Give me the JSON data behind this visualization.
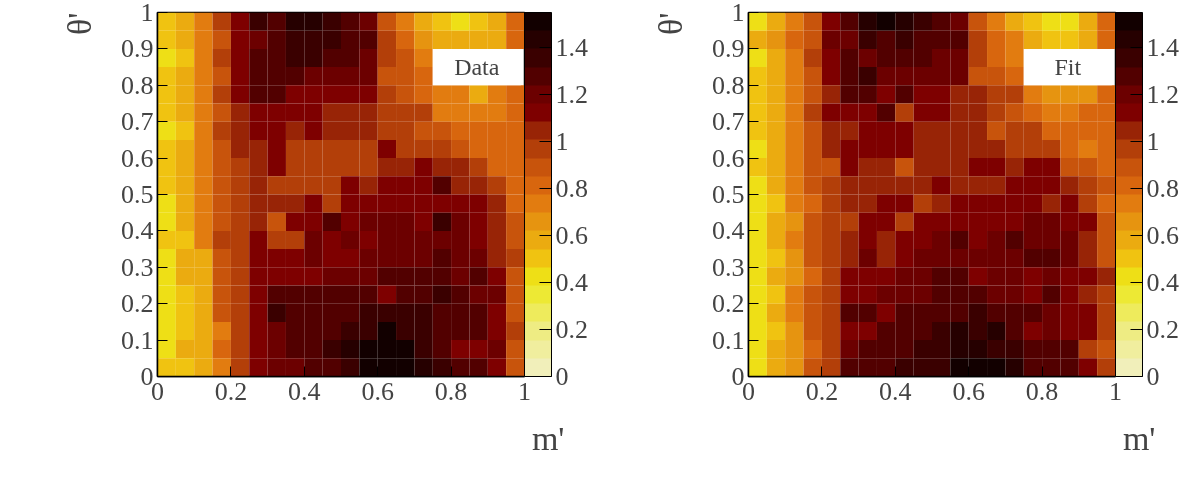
{
  "chart_data": [
    {
      "type": "heatmap",
      "annotations": [
        "Data"
      ],
      "xlabel": "m'",
      "ylabel": "θ'",
      "x": [
        0.025,
        0.075,
        0.125,
        0.175,
        0.225,
        0.275,
        0.325,
        0.375,
        0.425,
        0.475,
        0.525,
        0.575,
        0.625,
        0.675,
        0.725,
        0.775,
        0.825,
        0.875,
        0.925,
        0.975
      ],
      "y": [
        0.975,
        0.925,
        0.875,
        0.825,
        0.775,
        0.725,
        0.675,
        0.625,
        0.575,
        0.525,
        0.475,
        0.425,
        0.375,
        0.325,
        0.275,
        0.225,
        0.175,
        0.125,
        0.075,
        0.025
      ],
      "xlim": [
        0,
        1
      ],
      "ylim": [
        0,
        1
      ],
      "xticks": [
        0,
        0.2,
        0.4,
        0.6,
        0.8,
        1
      ],
      "yticks": [
        0,
        0.1,
        0.2,
        0.3,
        0.4,
        0.5,
        0.6,
        0.7,
        0.8,
        0.9,
        1
      ],
      "clim": [
        0,
        1.55
      ],
      "cticks": [
        0,
        0.2,
        0.4,
        0.6,
        0.8,
        1,
        1.2,
        1.4
      ],
      "cells": [
        [
          0.5,
          0.55,
          0.72,
          0.95,
          1.15,
          1.35,
          1.3,
          1.45,
          1.45,
          1.35,
          1.3,
          1.2,
          0.9,
          0.75,
          0.62,
          0.5,
          0.45,
          0.5,
          0.6,
          0.8
        ],
        [
          0.5,
          0.55,
          0.72,
          0.88,
          1.15,
          1.2,
          1.3,
          1.38,
          1.38,
          1.38,
          1.3,
          1.25,
          0.95,
          0.85,
          0.65,
          0.55,
          0.55,
          0.55,
          0.6,
          0.8
        ],
        [
          0.45,
          0.5,
          0.72,
          0.95,
          1.15,
          1.3,
          1.3,
          1.35,
          1.35,
          1.3,
          1.25,
          1.2,
          1.0,
          0.88,
          0.75,
          null,
          null,
          null,
          null,
          null
        ],
        [
          0.5,
          0.55,
          0.72,
          0.88,
          1.15,
          1.3,
          1.3,
          1.3,
          1.2,
          1.2,
          1.2,
          1.2,
          0.9,
          0.9,
          0.78,
          null,
          null,
          null,
          null,
          null
        ],
        [
          0.5,
          0.55,
          0.72,
          0.95,
          1.15,
          1.25,
          1.25,
          1.15,
          1.15,
          1.15,
          1.15,
          1.15,
          0.95,
          0.9,
          0.85,
          0.7,
          0.7,
          0.62,
          0.72,
          0.8
        ],
        [
          0.5,
          0.55,
          0.72,
          0.9,
          1.05,
          1.15,
          1.15,
          1.15,
          1.15,
          1.05,
          1.05,
          1.05,
          1.0,
          0.95,
          0.95,
          0.75,
          0.75,
          0.72,
          0.72,
          0.8
        ],
        [
          0.45,
          0.5,
          0.72,
          0.95,
          1.05,
          1.15,
          1.15,
          1.05,
          1.15,
          1.05,
          1.05,
          1.05,
          1.0,
          0.95,
          0.9,
          0.9,
          0.8,
          0.78,
          0.78,
          0.8
        ],
        [
          0.5,
          0.55,
          0.72,
          0.9,
          1.05,
          1.05,
          1.15,
          1.0,
          1.0,
          1.0,
          1.0,
          1.0,
          1.15,
          1.0,
          1.0,
          0.95,
          0.9,
          0.85,
          0.85,
          0.85
        ],
        [
          0.5,
          0.55,
          0.72,
          0.9,
          1.0,
          1.05,
          1.15,
          1.0,
          1.0,
          1.0,
          1.0,
          1.0,
          1.05,
          1.05,
          1.15,
          1.05,
          1.05,
          0.95,
          0.85,
          0.85
        ],
        [
          0.5,
          0.55,
          0.72,
          0.9,
          0.95,
          1.05,
          1.0,
          1.0,
          1.0,
          1.0,
          1.15,
          1.05,
          1.15,
          1.15,
          1.15,
          1.25,
          1.05,
          1.05,
          0.95,
          0.85
        ],
        [
          0.45,
          0.55,
          0.72,
          0.88,
          1.0,
          1.05,
          1.05,
          1.05,
          1.15,
          0.95,
          1.15,
          1.15,
          1.15,
          1.15,
          1.15,
          1.15,
          1.15,
          1.15,
          1.05,
          0.85
        ],
        [
          0.45,
          0.55,
          0.75,
          0.88,
          0.95,
          1.05,
          0.92,
          1.15,
          1.15,
          1.25,
          1.15,
          1.2,
          1.2,
          1.2,
          1.15,
          1.35,
          1.2,
          1.15,
          1.05,
          0.88
        ],
        [
          0.5,
          0.5,
          0.75,
          0.95,
          0.95,
          1.15,
          1.0,
          1.0,
          1.2,
          1.15,
          1.2,
          1.15,
          1.2,
          1.2,
          1.2,
          1.2,
          1.2,
          1.15,
          1.05,
          0.9
        ],
        [
          0.45,
          0.55,
          0.6,
          0.88,
          0.95,
          1.15,
          1.15,
          1.15,
          1.2,
          1.15,
          1.15,
          1.2,
          1.2,
          1.2,
          1.2,
          1.3,
          1.2,
          1.2,
          1.05,
          1.0
        ],
        [
          0.45,
          0.55,
          0.6,
          0.88,
          1.0,
          1.15,
          1.15,
          1.15,
          1.15,
          1.2,
          1.2,
          1.2,
          1.25,
          1.25,
          1.25,
          1.25,
          1.2,
          1.3,
          1.15,
          0.9
        ],
        [
          0.45,
          0.5,
          0.6,
          0.88,
          1.0,
          1.15,
          1.25,
          1.25,
          1.25,
          1.3,
          1.25,
          1.25,
          1.15,
          1.25,
          1.25,
          1.35,
          1.25,
          1.2,
          1.2,
          0.9
        ],
        [
          0.45,
          0.5,
          0.6,
          0.88,
          1.0,
          1.15,
          1.35,
          1.25,
          1.25,
          1.25,
          1.3,
          1.35,
          1.35,
          1.35,
          1.35,
          1.3,
          1.3,
          1.25,
          1.15,
          0.9
        ],
        [
          0.45,
          0.5,
          0.6,
          0.75,
          1.0,
          1.15,
          1.2,
          1.3,
          1.3,
          1.3,
          1.35,
          1.35,
          1.5,
          1.35,
          1.35,
          1.3,
          1.25,
          1.25,
          1.15,
          0.95
        ],
        [
          0.45,
          0.55,
          0.6,
          0.85,
          0.95,
          1.15,
          1.2,
          1.3,
          1.3,
          1.35,
          1.4,
          1.5,
          1.5,
          1.5,
          1.35,
          1.3,
          1.15,
          1.15,
          1.2,
          0.9
        ],
        [
          0.5,
          0.5,
          0.6,
          0.75,
          0.95,
          1.15,
          1.2,
          1.2,
          1.3,
          1.3,
          1.35,
          1.5,
          1.5,
          1.5,
          1.4,
          1.35,
          1.3,
          1.25,
          1.15,
          0.9
        ]
      ]
    },
    {
      "type": "heatmap",
      "annotations": [
        "Fit"
      ],
      "xlabel": "m'",
      "ylabel": "θ'",
      "x": [
        0.025,
        0.075,
        0.125,
        0.175,
        0.225,
        0.275,
        0.325,
        0.375,
        0.425,
        0.475,
        0.525,
        0.575,
        0.625,
        0.675,
        0.725,
        0.775,
        0.825,
        0.875,
        0.925,
        0.975
      ],
      "y": [
        0.975,
        0.925,
        0.875,
        0.825,
        0.775,
        0.725,
        0.675,
        0.625,
        0.575,
        0.525,
        0.475,
        0.425,
        0.375,
        0.325,
        0.275,
        0.225,
        0.175,
        0.125,
        0.075,
        0.025
      ],
      "xlim": [
        0,
        1
      ],
      "ylim": [
        0,
        1
      ],
      "xticks": [
        0,
        0.2,
        0.4,
        0.6,
        0.8,
        1
      ],
      "yticks": [
        0,
        0.1,
        0.2,
        0.3,
        0.4,
        0.5,
        0.6,
        0.7,
        0.8,
        0.9,
        1
      ],
      "clim": [
        0,
        1.55
      ],
      "cticks": [
        0,
        0.2,
        0.4,
        0.6,
        0.8,
        1,
        1.2,
        1.4
      ],
      "cells": [
        [
          0.45,
          0.55,
          0.72,
          0.9,
          1.15,
          1.25,
          1.4,
          1.5,
          1.4,
          1.35,
          1.3,
          1.2,
          0.9,
          0.72,
          0.62,
          0.5,
          0.45,
          0.45,
          0.55,
          0.8
        ],
        [
          0.55,
          0.65,
          0.8,
          0.9,
          1.2,
          1.2,
          1.35,
          1.3,
          1.35,
          1.3,
          1.3,
          1.25,
          0.95,
          0.85,
          0.72,
          0.6,
          0.5,
          0.5,
          0.6,
          0.8
        ],
        [
          0.45,
          0.55,
          0.72,
          0.95,
          1.15,
          1.3,
          1.2,
          1.25,
          1.3,
          1.3,
          1.2,
          1.2,
          1.0,
          0.8,
          0.72,
          null,
          null,
          null,
          null,
          null
        ],
        [
          0.5,
          0.55,
          0.72,
          0.88,
          1.15,
          1.25,
          1.35,
          1.2,
          1.2,
          1.2,
          1.2,
          1.2,
          0.9,
          0.9,
          0.8,
          null,
          null,
          null,
          null,
          null
        ],
        [
          0.5,
          0.55,
          0.72,
          0.9,
          1.05,
          1.25,
          1.25,
          1.15,
          1.25,
          1.15,
          1.15,
          1.05,
          1.05,
          1.0,
          0.95,
          0.72,
          0.65,
          0.65,
          0.65,
          0.85
        ],
        [
          0.5,
          0.55,
          0.72,
          0.95,
          1.15,
          1.15,
          1.15,
          1.25,
          1.0,
          1.15,
          1.15,
          1.05,
          1.05,
          1.0,
          0.9,
          0.85,
          0.72,
          0.72,
          0.78,
          0.85
        ],
        [
          0.5,
          0.55,
          0.72,
          0.88,
          1.05,
          1.05,
          1.15,
          1.15,
          1.15,
          1.05,
          1.05,
          1.05,
          1.05,
          0.9,
          1.0,
          0.95,
          0.85,
          0.78,
          0.78,
          0.85
        ],
        [
          0.45,
          0.55,
          0.72,
          0.88,
          1.05,
          1.15,
          1.15,
          1.15,
          1.15,
          1.05,
          1.05,
          1.05,
          1.05,
          1.05,
          1.0,
          1.0,
          0.95,
          0.85,
          0.75,
          0.85
        ],
        [
          0.5,
          0.55,
          0.72,
          0.9,
          0.9,
          1.15,
          1.05,
          1.05,
          0.9,
          1.05,
          1.05,
          1.05,
          1.15,
          1.15,
          1.05,
          1.15,
          1.15,
          0.88,
          0.88,
          0.85
        ],
        [
          0.45,
          0.55,
          0.72,
          0.9,
          0.95,
          1.05,
          1.05,
          1.05,
          1.05,
          1.05,
          1.15,
          1.05,
          1.05,
          1.05,
          1.15,
          1.15,
          1.15,
          1.05,
          0.95,
          0.88
        ],
        [
          0.45,
          0.5,
          0.72,
          0.85,
          1.0,
          1.05,
          1.05,
          1.15,
          1.15,
          0.95,
          1.05,
          1.15,
          1.15,
          1.15,
          1.15,
          1.15,
          1.05,
          1.15,
          0.95,
          0.85
        ],
        [
          0.45,
          0.55,
          0.65,
          0.88,
          1.0,
          1.0,
          1.15,
          1.15,
          0.95,
          1.15,
          1.15,
          1.15,
          1.15,
          1.15,
          1.15,
          1.2,
          1.2,
          1.15,
          1.15,
          0.88
        ],
        [
          0.45,
          0.55,
          0.72,
          0.88,
          0.95,
          1.05,
          1.15,
          1.05,
          1.15,
          1.15,
          1.2,
          1.3,
          1.15,
          1.2,
          1.3,
          1.2,
          1.2,
          1.2,
          1.05,
          0.9
        ],
        [
          0.45,
          0.5,
          0.65,
          0.88,
          1.0,
          1.05,
          1.2,
          1.05,
          1.15,
          1.2,
          1.2,
          1.2,
          1.2,
          1.2,
          1.2,
          1.25,
          1.25,
          1.2,
          1.05,
          0.9
        ],
        [
          0.45,
          0.55,
          0.65,
          0.85,
          0.95,
          1.15,
          1.15,
          1.15,
          1.2,
          1.2,
          1.25,
          1.25,
          1.15,
          1.2,
          1.2,
          1.15,
          1.2,
          1.15,
          1.15,
          1.05
        ],
        [
          0.45,
          0.5,
          0.72,
          0.88,
          0.95,
          1.15,
          1.15,
          1.2,
          1.2,
          1.2,
          1.25,
          1.25,
          1.25,
          1.2,
          1.2,
          1.15,
          1.25,
          1.15,
          1.05,
          0.95
        ],
        [
          0.45,
          0.55,
          0.72,
          0.88,
          1.0,
          1.25,
          1.25,
          1.15,
          1.25,
          1.25,
          1.3,
          1.3,
          1.35,
          1.3,
          1.3,
          1.25,
          1.2,
          1.15,
          1.15,
          0.95
        ],
        [
          0.45,
          0.5,
          0.65,
          0.88,
          1.0,
          1.15,
          1.15,
          1.3,
          1.3,
          1.25,
          1.35,
          1.4,
          1.35,
          1.4,
          1.3,
          1.15,
          1.2,
          1.15,
          1.1,
          1.0
        ],
        [
          0.45,
          0.55,
          0.65,
          0.85,
          0.95,
          1.2,
          1.25,
          1.25,
          1.3,
          1.35,
          1.35,
          1.4,
          1.4,
          1.35,
          1.35,
          1.25,
          1.25,
          1.25,
          0.95,
          0.9
        ],
        [
          0.45,
          0.55,
          0.65,
          0.88,
          0.95,
          1.3,
          1.3,
          1.3,
          1.35,
          1.35,
          1.35,
          1.5,
          1.5,
          1.5,
          1.4,
          1.3,
          1.3,
          1.25,
          1.15,
          0.95
        ]
      ]
    }
  ]
}
